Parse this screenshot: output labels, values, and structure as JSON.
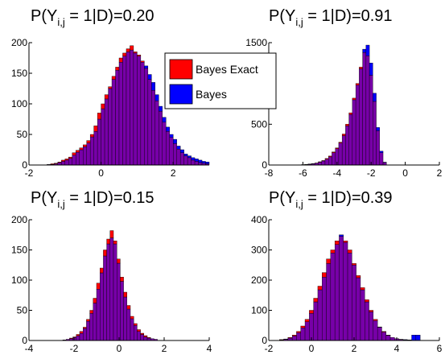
{
  "chart_data": [
    {
      "type": "bar",
      "title_main": "P(Y",
      "title_sub": "i,j",
      "title_rest": " = 1|D)=0.20",
      "xlim": [
        -2,
        3
      ],
      "ylim": [
        0,
        200
      ],
      "xticks": [
        "-2",
        "0",
        "2"
      ],
      "xtick_values": [
        -2,
        0,
        2
      ],
      "yticks": [
        "0",
        "50",
        "100",
        "150",
        "200"
      ],
      "ytick_values": [
        0,
        50,
        100,
        150,
        200
      ],
      "bin_start": -1.5,
      "bin_width": 0.1,
      "series": [
        {
          "name": "Bayes Exact",
          "values": [
            1,
            2,
            3,
            5,
            8,
            10,
            13,
            20,
            24,
            28,
            33,
            40,
            50,
            64,
            85,
            100,
            115,
            128,
            145,
            160,
            175,
            183,
            190,
            195,
            185,
            180,
            170,
            158,
            140,
            122,
            105,
            88,
            70,
            55,
            45,
            35,
            26,
            20,
            15,
            12,
            8,
            6,
            4,
            3,
            2
          ]
        },
        {
          "name": "Bayes",
          "values": [
            1,
            1,
            2,
            4,
            6,
            8,
            11,
            16,
            21,
            25,
            30,
            36,
            46,
            55,
            75,
            92,
            108,
            125,
            140,
            155,
            168,
            178,
            185,
            188,
            183,
            178,
            168,
            162,
            148,
            135,
            115,
            96,
            78,
            62,
            50,
            42,
            31,
            25,
            18,
            15,
            12,
            10,
            8,
            6,
            5
          ]
        }
      ]
    },
    {
      "type": "bar",
      "title_main": "P(Y",
      "title_sub": "i,j",
      "title_rest": " = 1|D)=0.91",
      "xlim": [
        -8,
        2
      ],
      "ylim": [
        0,
        1500
      ],
      "xticks": [
        "-8",
        "-6",
        "-4",
        "-2",
        "0",
        "2"
      ],
      "xtick_values": [
        -8,
        -6,
        -4,
        -2,
        0,
        2
      ],
      "yticks": [
        "0",
        "500",
        "1000",
        "1500"
      ],
      "ytick_values": [
        0,
        500,
        1000,
        1500
      ],
      "bin_start": -6.5,
      "bin_width": 0.2,
      "series": [
        {
          "name": "Bayes Exact",
          "values": [
            2,
            3,
            5,
            8,
            12,
            18,
            25,
            40,
            55,
            80,
            110,
            160,
            210,
            280,
            380,
            500,
            640,
            820,
            1000,
            1200,
            1380,
            1340,
            1100,
            780,
            420,
            150,
            30
          ]
        },
        {
          "name": "Bayes",
          "values": [
            1,
            2,
            3,
            6,
            10,
            15,
            22,
            35,
            50,
            72,
            100,
            150,
            200,
            270,
            360,
            480,
            620,
            800,
            980,
            1180,
            1420,
            1470,
            1250,
            880,
            460,
            170,
            35
          ]
        }
      ]
    },
    {
      "type": "bar",
      "title_main": "P(Y",
      "title_sub": "i,j",
      "title_rest": " = 1|D)=0.15",
      "xlim": [
        -4,
        4
      ],
      "ylim": [
        0,
        200
      ],
      "xticks": [
        "-4",
        "-2",
        "0",
        "2",
        "4"
      ],
      "xtick_values": [
        -4,
        -2,
        0,
        2,
        4
      ],
      "yticks": [
        "0",
        "50",
        "100",
        "150",
        "200"
      ],
      "ytick_values": [
        0,
        50,
        100,
        150,
        200
      ],
      "bin_start": -2.5,
      "bin_width": 0.15,
      "series": [
        {
          "name": "Bayes Exact",
          "values": [
            1,
            2,
            4,
            6,
            10,
            15,
            22,
            35,
            50,
            70,
            95,
            120,
            150,
            168,
            182,
            165,
            135,
            105,
            80,
            58,
            40,
            28,
            18,
            12,
            8,
            5,
            3,
            2
          ]
        },
        {
          "name": "Bayes",
          "values": [
            1,
            2,
            3,
            5,
            8,
            12,
            20,
            32,
            45,
            62,
            85,
            112,
            140,
            160,
            170,
            160,
            128,
            98,
            72,
            52,
            36,
            25,
            15,
            10,
            6,
            4,
            3,
            2
          ]
        }
      ]
    },
    {
      "type": "bar",
      "title_main": "P(Y",
      "title_sub": "i,j",
      "title_rest": " = 1|D)=0.39",
      "xlim": [
        -2,
        6
      ],
      "ylim": [
        0,
        400
      ],
      "xticks": [
        "-2",
        "0",
        "2",
        "4",
        "6"
      ],
      "xtick_values": [
        -2,
        0,
        2,
        4,
        6
      ],
      "yticks": [
        "0",
        "100",
        "200",
        "300",
        "400"
      ],
      "ytick_values": [
        0,
        100,
        200,
        300,
        400
      ],
      "bin_start": -1.5,
      "bin_width": 0.2,
      "series": [
        {
          "name": "Bayes Exact",
          "values": [
            3,
            5,
            10,
            18,
            30,
            48,
            70,
            100,
            140,
            180,
            225,
            270,
            300,
            330,
            345,
            330,
            300,
            255,
            215,
            175,
            135,
            100,
            70,
            45,
            30,
            18,
            10,
            6,
            3,
            2,
            1,
            1,
            1
          ]
        },
        {
          "name": "Bayes",
          "values": [
            2,
            4,
            8,
            15,
            26,
            42,
            62,
            90,
            128,
            168,
            210,
            255,
            290,
            318,
            350,
            325,
            290,
            250,
            208,
            168,
            128,
            95,
            66,
            44,
            28,
            17,
            10,
            6,
            4,
            3,
            2,
            18,
            18
          ]
        }
      ]
    }
  ],
  "legend": {
    "items": [
      {
        "label": "Bayes Exact",
        "color": "#ff0000"
      },
      {
        "label": "Bayes",
        "color": "#0000ff"
      }
    ]
  },
  "colors": {
    "series1": "#ff0000",
    "series2": "#0000ff",
    "overlap": "#7700a8",
    "edge": "#000000"
  }
}
